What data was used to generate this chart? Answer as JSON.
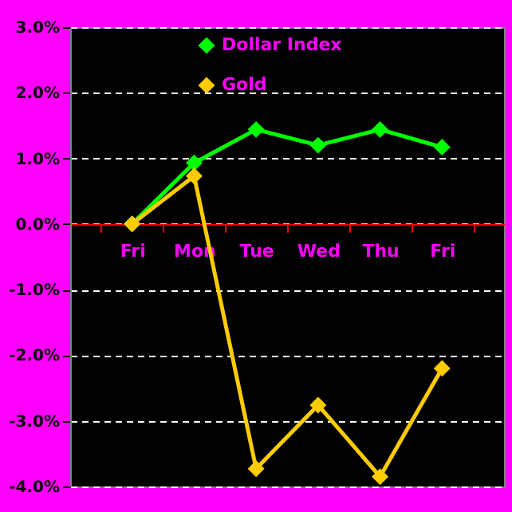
{
  "chart_data": {
    "type": "line",
    "categories": [
      "Fri",
      "Mon",
      "Tue",
      "Wed",
      "Thu",
      "Fri"
    ],
    "series": [
      {
        "name": "Dollar Index",
        "color": "#00ff00",
        "values": [
          0,
          0.93,
          1.44,
          1.2,
          1.44,
          1.17
        ]
      },
      {
        "name": "Gold",
        "color": "#ffcc00",
        "values": [
          0,
          0.73,
          -3.73,
          -2.76,
          -3.85,
          -2.2
        ]
      }
    ],
    "ylim": [
      -4,
      3
    ],
    "yticks": [
      {
        "value": -4,
        "label": "-4.0%"
      },
      {
        "value": -3,
        "label": "-3.0%"
      },
      {
        "value": -2,
        "label": "-2.0%"
      },
      {
        "value": -1,
        "label": "-1.0%"
      },
      {
        "value": 0,
        "label": "0.0%"
      },
      {
        "value": 1,
        "label": "1.0%"
      },
      {
        "value": 2,
        "label": "2.0%"
      },
      {
        "value": 3,
        "label": "3.0%"
      }
    ],
    "grid": "y",
    "legend": "top",
    "marker": "diamond",
    "line_style": "solid"
  }
}
